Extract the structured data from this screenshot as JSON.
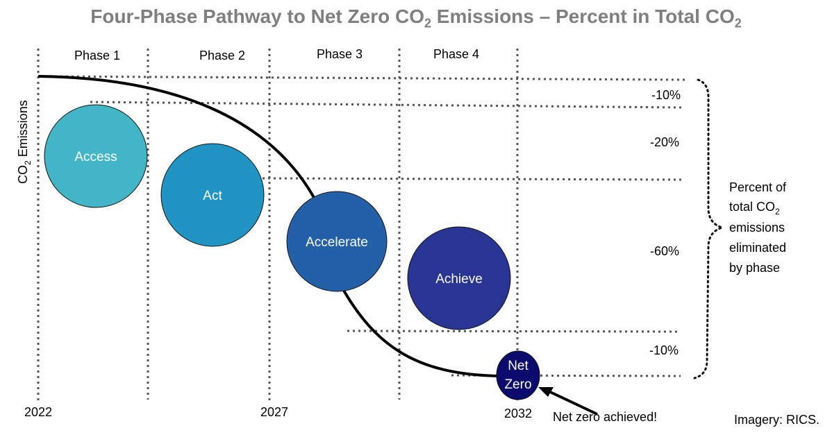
{
  "title": {
    "pre": "Four-Phase Pathway to Net Zero CO",
    "sub1": "2",
    "mid": " Emissions – Percent in Total CO",
    "sub2": "2"
  },
  "y_axis_label": {
    "pre": "CO",
    "sub": "2",
    "post": " Emissions"
  },
  "phases": [
    "Phase 1",
    "Phase 2",
    "Phase 3",
    "Phase 4"
  ],
  "years": [
    "2022",
    "2027",
    "2032"
  ],
  "stages": [
    {
      "label": "Access",
      "color": "#42b6c6"
    },
    {
      "label": "Act",
      "color": "#2095c4"
    },
    {
      "label": "Accelerate",
      "color": "#2460a8"
    },
    {
      "label": "Achieve",
      "color": "#283593"
    },
    {
      "label_line1": "Net",
      "label_line2": "Zero",
      "color": "#0b0b6e"
    }
  ],
  "percentages": [
    "-10%",
    "-20%",
    "-60%",
    "-10%"
  ],
  "brace_label": {
    "line1": "Percent of",
    "line2_pre": "total CO",
    "line2_sub": "2",
    "line3": "emissions",
    "line4": "eliminated",
    "line5": "by phase"
  },
  "annotation": "Net zero achieved!",
  "credit": "Imagery: RICS."
}
